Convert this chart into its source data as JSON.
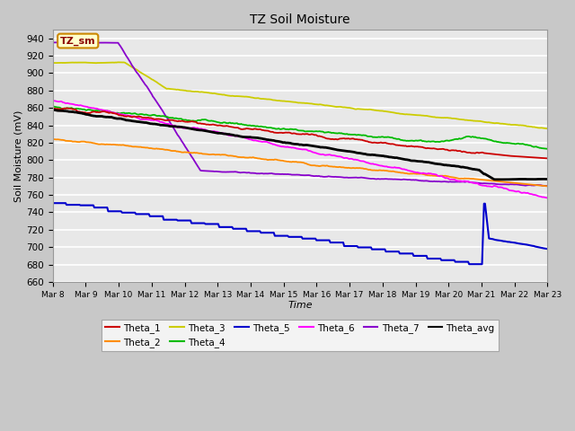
{
  "title": "TZ Soil Moisture",
  "xlabel": "Time",
  "ylabel": "Soil Moisture (mV)",
  "ylim": [
    660,
    950
  ],
  "background_color": "#e8e8e8",
  "grid_color": "#f0f0f0",
  "legend_label": "TZ_sm",
  "series_colors": {
    "Theta_1": "#cc0000",
    "Theta_2": "#ff8c00",
    "Theta_3": "#cccc00",
    "Theta_4": "#00bb00",
    "Theta_5": "#0000cc",
    "Theta_6": "#ff00ff",
    "Theta_7": "#8800cc",
    "Theta_avg": "#000000"
  },
  "x_tick_labels": [
    "Mar 8",
    "Mar 9",
    "Mar 10",
    "Mar 11",
    "Mar 12",
    "Mar 13",
    "Mar 14",
    "Mar 15",
    "Mar 16",
    "Mar 17",
    "Mar 18",
    "Mar 19",
    "Mar 20",
    "Mar 21",
    "Mar 22",
    "Mar 23"
  ],
  "n_points": 500
}
